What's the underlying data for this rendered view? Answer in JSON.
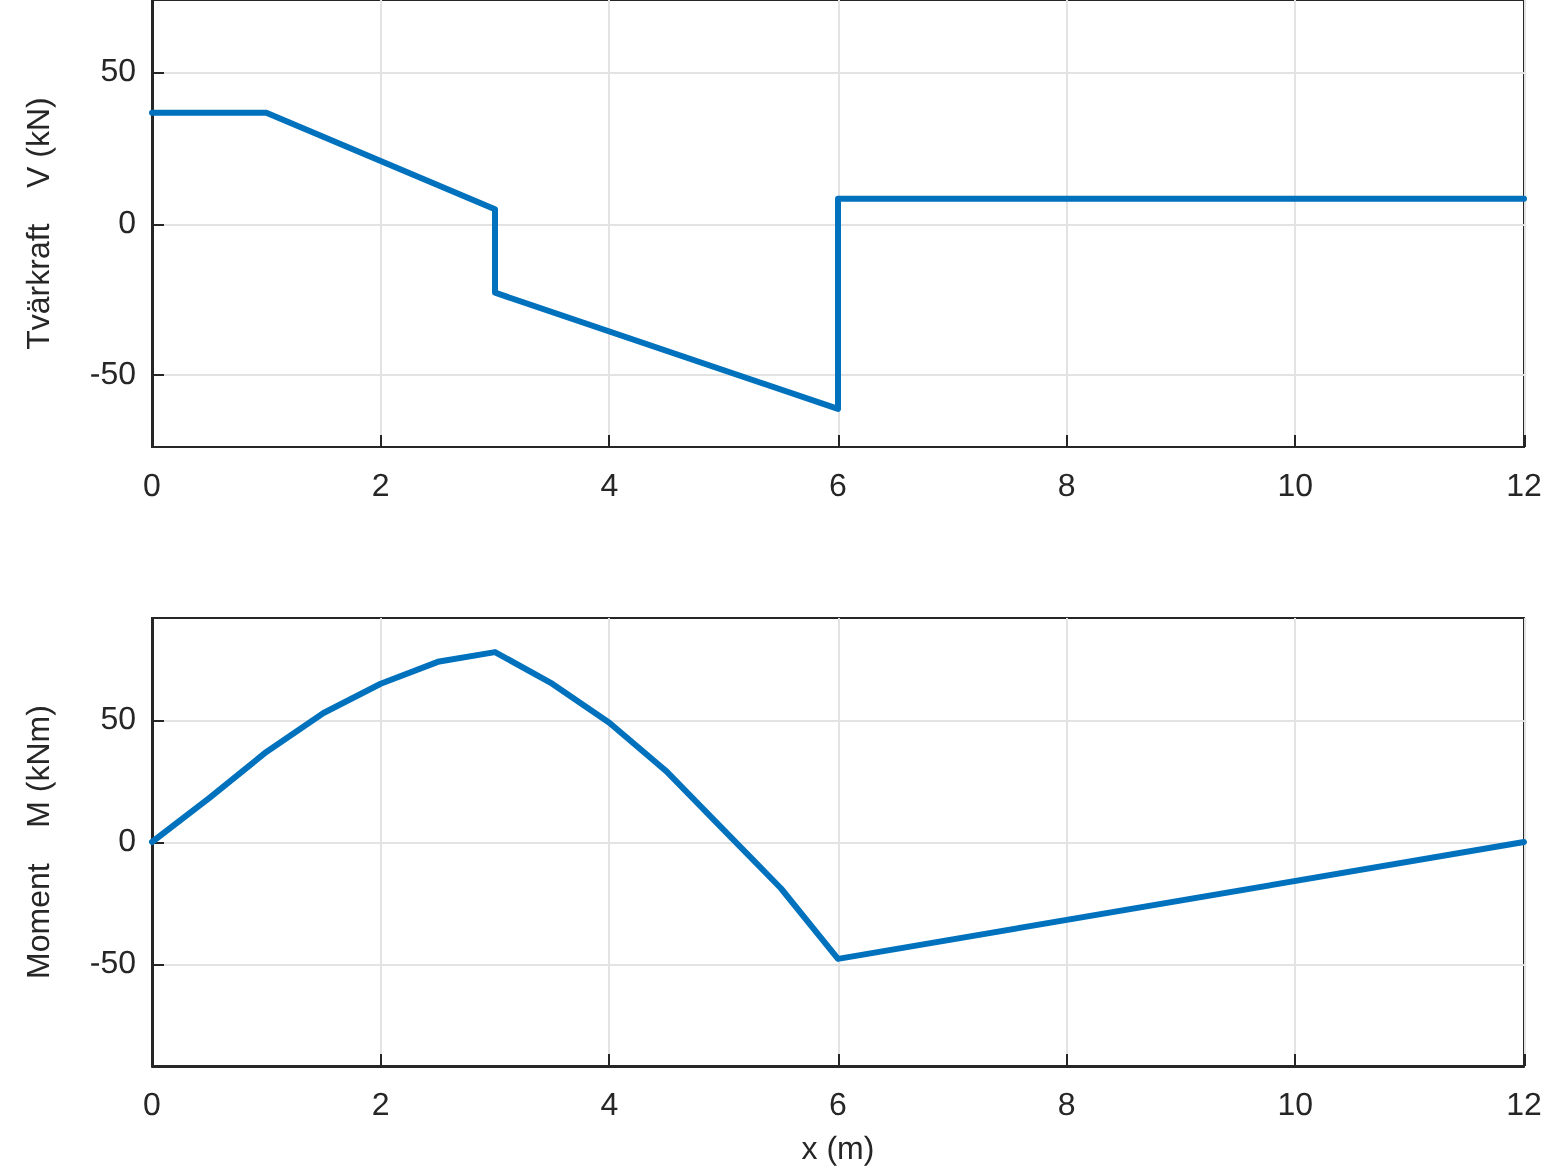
{
  "chart_data": [
    {
      "type": "line",
      "ylabel": "Tvärkraft    V (kN)",
      "x": [
        0,
        1,
        3,
        3,
        6,
        6,
        12
      ],
      "series": [
        {
          "color": "#0072bd",
          "values": [
            36.7,
            36.7,
            4.7,
            -22.9,
            -61.4,
            8.2,
            8.2
          ]
        }
      ],
      "xlim": [
        0,
        12
      ],
      "xticks": [
        0,
        2,
        4,
        6,
        8,
        10,
        12
      ],
      "ylim": [
        -74,
        74
      ],
      "yticks": [
        -50,
        0,
        50
      ],
      "grid": true,
      "marker": "none",
      "line_style": "solid"
    },
    {
      "type": "line",
      "xlabel": "x (m)",
      "ylabel": "Moment    M (kNm)",
      "x": [
        0,
        0.5,
        1,
        1.5,
        2,
        2.5,
        3,
        3.5,
        4,
        4.5,
        5,
        5.5,
        6,
        12
      ],
      "series": [
        {
          "color": "#0072bd",
          "values": [
            0,
            18,
            37,
            53,
            65,
            74,
            78,
            65,
            49,
            29,
            5,
            -19,
            -48,
            0
          ]
        }
      ],
      "xlim": [
        0,
        12
      ],
      "xticks": [
        0,
        2,
        4,
        6,
        8,
        10,
        12
      ],
      "ylim": [
        -92,
        92
      ],
      "yticks": [
        -50,
        0,
        50
      ],
      "grid": true,
      "marker": "none",
      "line_style": "solid"
    }
  ]
}
